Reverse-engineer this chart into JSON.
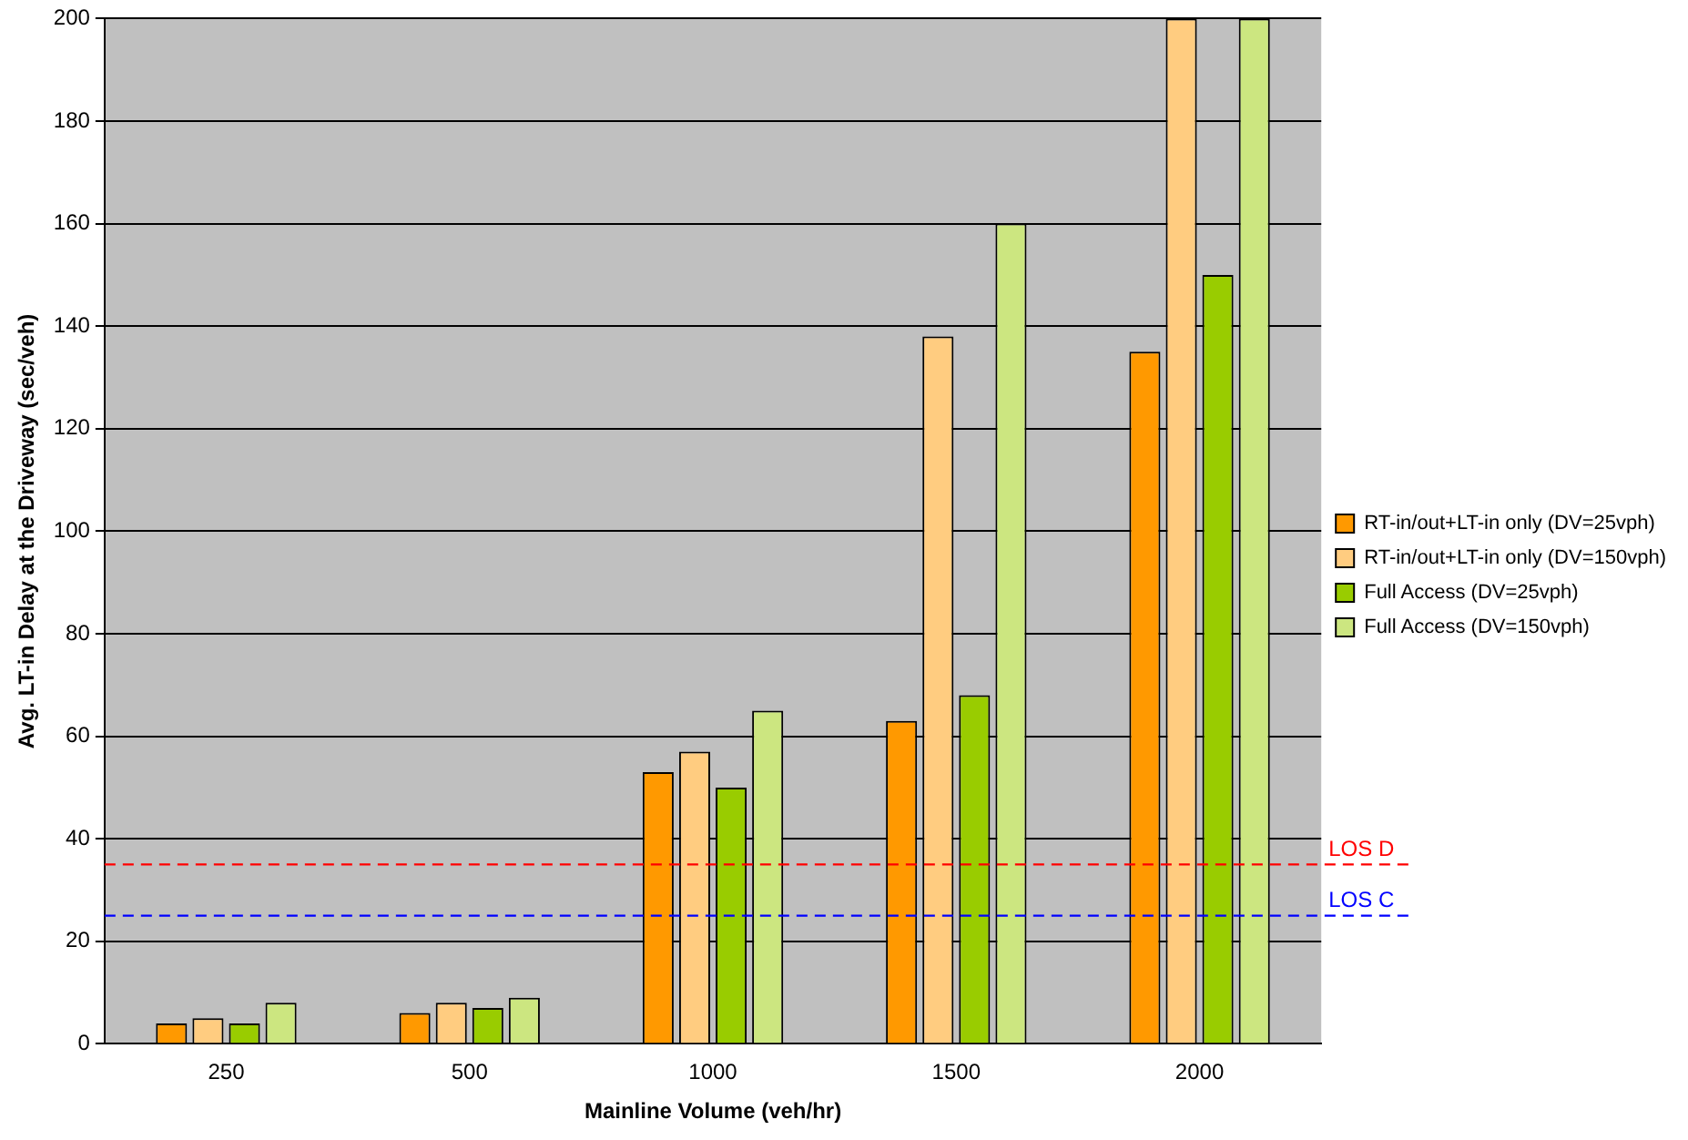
{
  "chart_data": {
    "type": "bar",
    "xlabel": "Mainline Volume (veh/hr)",
    "ylabel": "Avg. LT-in Delay at the Driveway (sec/veh)",
    "categories": [
      "250",
      "500",
      "1000",
      "1500",
      "2000"
    ],
    "series": [
      {
        "name": "RT-in/out+LT-in only (DV=25vph)",
        "color": "#ff9900",
        "values": [
          4,
          6,
          53,
          63,
          135
        ]
      },
      {
        "name": "RT-in/out+LT-in only (DV=150vph)",
        "color": "#ffcc80",
        "values": [
          5,
          8,
          57,
          138,
          200
        ]
      },
      {
        "name": "Full Access (DV=25vph)",
        "color": "#99cc00",
        "values": [
          4,
          7,
          50,
          68,
          150
        ]
      },
      {
        "name": "Full Access (DV=150vph)",
        "color": "#cce680",
        "values": [
          8,
          9,
          65,
          160,
          200
        ]
      }
    ],
    "ylim": [
      0,
      200
    ],
    "yticks": [
      0,
      20,
      40,
      60,
      80,
      100,
      120,
      140,
      160,
      180,
      200
    ],
    "grid": "y",
    "legend": "right",
    "ref_lines": [
      {
        "axis": "y",
        "value": 35,
        "label": "LOS D",
        "color": "#ff0000",
        "line_style": "dashed"
      },
      {
        "axis": "y",
        "value": 25,
        "label": "LOS C",
        "color": "#0000ff",
        "line_style": "dashed"
      }
    ]
  }
}
